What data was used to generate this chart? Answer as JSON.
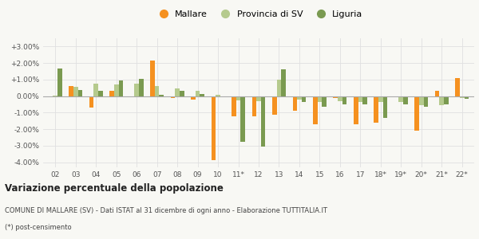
{
  "categories": [
    "02",
    "03",
    "04",
    "05",
    "06",
    "07",
    "08",
    "09",
    "10",
    "11*",
    "12",
    "13",
    "14",
    "15",
    "16",
    "17",
    "18*",
    "19*",
    "20*",
    "21*",
    "22*"
  ],
  "mallare": [
    0.0,
    0.6,
    -0.7,
    0.3,
    -0.05,
    2.15,
    -0.1,
    -0.2,
    -3.85,
    -1.2,
    -1.2,
    -1.1,
    -0.9,
    -1.7,
    -0.1,
    -1.7,
    -1.6,
    -0.05,
    -2.1,
    0.3,
    1.1
  ],
  "provincia": [
    0.05,
    0.55,
    0.75,
    0.7,
    0.75,
    0.6,
    0.45,
    0.3,
    0.1,
    -0.25,
    -0.3,
    1.0,
    -0.2,
    -0.35,
    -0.3,
    -0.35,
    -0.35,
    -0.35,
    -0.55,
    -0.55,
    -0.1
  ],
  "liguria": [
    1.65,
    0.35,
    0.3,
    0.95,
    1.05,
    0.1,
    0.3,
    0.15,
    0.0,
    -2.75,
    -3.05,
    1.6,
    -0.35,
    -0.65,
    -0.5,
    -0.5,
    -1.3,
    -0.5,
    -0.65,
    -0.5,
    -0.15
  ],
  "color_mallare": "#f59120",
  "color_provincia": "#b5ca8d",
  "color_liguria": "#7a9a50",
  "bg_color": "#f8f8f4",
  "grid_color": "#e0e0e0",
  "ylim": [
    -4.3,
    3.5
  ],
  "yticks": [
    -4.0,
    -3.0,
    -2.0,
    -1.0,
    0.0,
    1.0,
    2.0,
    3.0
  ],
  "ytick_labels": [
    "-4.00%",
    "-3.00%",
    "-2.00%",
    "-1.00%",
    "0.00%",
    "+1.00%",
    "+2.00%",
    "+3.00%"
  ],
  "title": "Variazione percentuale della popolazione",
  "subtitle": "COMUNE DI MALLARE (SV) - Dati ISTAT al 31 dicembre di ogni anno - Elaborazione TUTTITALIA.IT",
  "footnote": "(*) post-censimento",
  "legend_labels": [
    "Mallare",
    "Provincia di SV",
    "Liguria"
  ]
}
